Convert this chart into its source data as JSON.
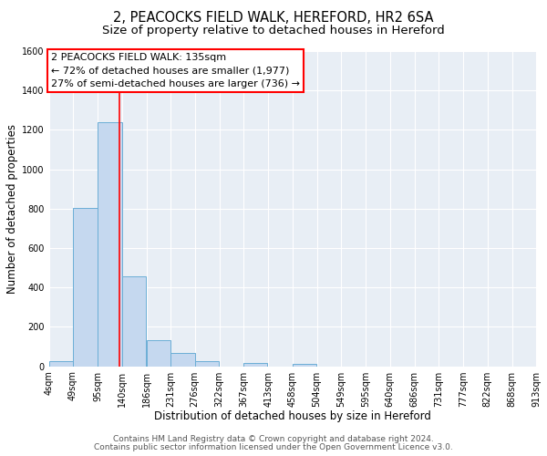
{
  "title": "2, PEACOCKS FIELD WALK, HEREFORD, HR2 6SA",
  "subtitle": "Size of property relative to detached houses in Hereford",
  "xlabel": "Distribution of detached houses by size in Hereford",
  "ylabel": "Number of detached properties",
  "bar_left_edges": [
    4,
    49,
    95,
    140,
    186,
    231,
    276,
    322,
    367,
    413,
    458,
    504,
    549,
    595,
    640,
    686,
    731,
    777,
    822,
    868
  ],
  "bar_heights": [
    25,
    805,
    1240,
    455,
    130,
    65,
    25,
    0,
    15,
    0,
    10,
    0,
    0,
    0,
    0,
    0,
    0,
    0,
    0,
    0
  ],
  "bin_width": 45,
  "bar_color": "#c5d8ef",
  "bar_edge_color": "#6baed6",
  "tick_labels": [
    "4sqm",
    "49sqm",
    "95sqm",
    "140sqm",
    "186sqm",
    "231sqm",
    "276sqm",
    "322sqm",
    "367sqm",
    "413sqm",
    "458sqm",
    "504sqm",
    "549sqm",
    "595sqm",
    "640sqm",
    "686sqm",
    "731sqm",
    "777sqm",
    "822sqm",
    "868sqm",
    "913sqm"
  ],
  "ylim": [
    0,
    1600
  ],
  "yticks": [
    0,
    200,
    400,
    600,
    800,
    1000,
    1200,
    1400,
    1600
  ],
  "red_line_x": 135,
  "ann_line1": "2 PEACOCKS FIELD WALK: 135sqm",
  "ann_line2": "← 72% of detached houses are smaller (1,977)",
  "ann_line3": "27% of semi-detached houses are larger (736) →",
  "footer_line1": "Contains HM Land Registry data © Crown copyright and database right 2024.",
  "footer_line2": "Contains public sector information licensed under the Open Government Licence v3.0.",
  "bg_color": "#e8eef5",
  "title_fontsize": 10.5,
  "subtitle_fontsize": 9.5,
  "axis_label_fontsize": 8.5,
  "tick_fontsize": 7,
  "footer_fontsize": 6.5,
  "annotation_fontsize": 8
}
